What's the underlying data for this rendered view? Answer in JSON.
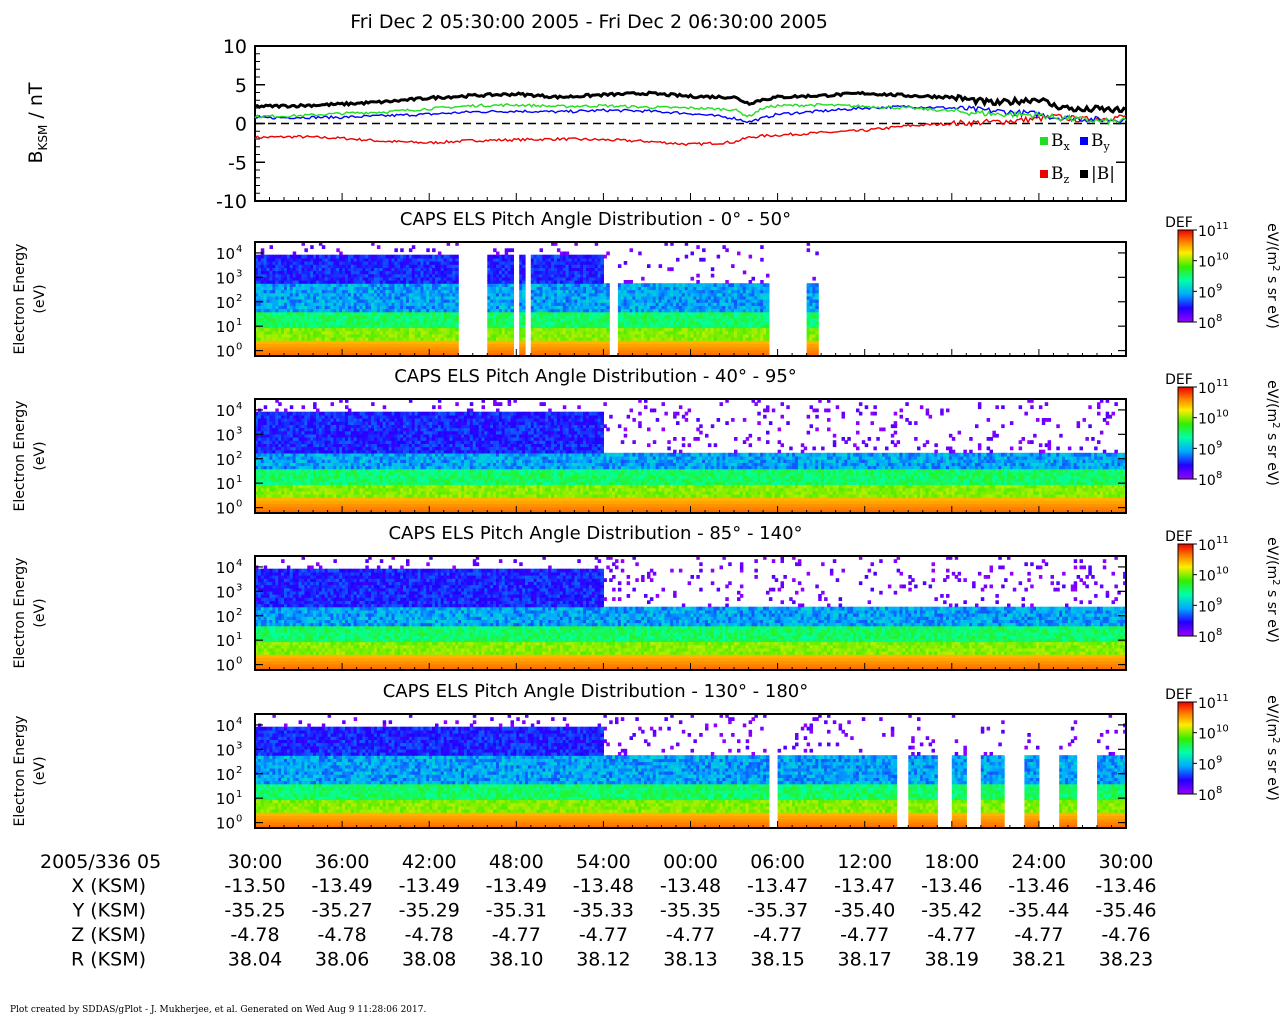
{
  "title": "Fri Dec 2 05:30:00 2005 - Fri Dec 2 06:30:00 2005",
  "footer": "Plot created by SDDAS/gPlot - J. Mukherjee, et al.  Generated on Wed Aug 9 11:28:06 2017.",
  "chart_data": [
    {
      "type": "line",
      "panel": "magnetic-field",
      "ylabel": "BKSM / nT",
      "ylim": [
        -10,
        10
      ],
      "yticks": [
        "10",
        "5",
        "0",
        "-5",
        "-10"
      ],
      "xlim_minutes": [
        0,
        60
      ],
      "zero_line": "dashed",
      "legend_placement": "bottom-right",
      "legend": [
        {
          "key": "Bx",
          "label": "B",
          "sub": "x",
          "color": "#22dd22"
        },
        {
          "key": "By",
          "label": "B",
          "sub": "y",
          "color": "#0000ff"
        },
        {
          "key": "Bz",
          "label": "B",
          "sub": "z",
          "color": "#ee0000"
        },
        {
          "key": "Bt",
          "label": "|B|",
          "sub": "",
          "color": "#000000"
        }
      ],
      "x": [
        0,
        3,
        6,
        9,
        12,
        15,
        18,
        21,
        24,
        27,
        30,
        33,
        34,
        35,
        36,
        39,
        42,
        45,
        48,
        51,
        54,
        55,
        57,
        58,
        60
      ],
      "series": [
        {
          "key": "Bx",
          "values": [
            0.9,
            1.0,
            1.3,
            1.5,
            1.9,
            2.3,
            2.4,
            2.2,
            2.3,
            2.1,
            2.0,
            1.8,
            0.9,
            2.0,
            2.3,
            2.4,
            2.2,
            2.0,
            1.6,
            1.2,
            1.1,
            0.8,
            0.5,
            0.3,
            0.3
          ]
        },
        {
          "key": "By",
          "values": [
            0.7,
            0.8,
            0.8,
            1.0,
            1.2,
            1.5,
            1.6,
            1.5,
            1.7,
            1.6,
            1.3,
            0.7,
            0.2,
            0.7,
            1.2,
            1.6,
            2.0,
            2.2,
            2.0,
            1.6,
            1.2,
            0.8,
            0.6,
            0.5,
            0.5
          ]
        },
        {
          "key": "Bz",
          "values": [
            -1.8,
            -1.7,
            -1.9,
            -2.3,
            -2.5,
            -2.2,
            -2.1,
            -2.0,
            -2.1,
            -2.3,
            -2.7,
            -2.4,
            -1.8,
            -1.6,
            -1.5,
            -1.2,
            -0.9,
            -0.3,
            0.0,
            0.2,
            0.6,
            0.9,
            0.5,
            0.6,
            0.9
          ]
        },
        {
          "key": "Bt",
          "values": [
            2.2,
            2.3,
            2.5,
            2.8,
            3.3,
            3.6,
            3.8,
            3.4,
            3.7,
            3.9,
            3.5,
            3.4,
            2.6,
            3.1,
            3.4,
            3.6,
            3.9,
            3.6,
            3.4,
            2.6,
            3.2,
            2.3,
            1.7,
            1.9,
            1.6
          ]
        }
      ]
    },
    {
      "type": "heatmap",
      "panel": "pad-1",
      "title": "CAPS ELS Pitch Angle Distribution - 0° - 50°",
      "ylabel": "Electron Energy",
      "ylabel2": "(eV)",
      "energy_range_eV": [
        0.6,
        28000
      ],
      "yticks": [
        "10",
        "10",
        "10",
        "10",
        "10"
      ],
      "ytick_exp": [
        "4",
        "3",
        "2",
        "1",
        "0"
      ],
      "colorbar": {
        "label": "DEF",
        "units": "eV/(m",
        "units_sup": "2",
        "units_rest": " s sr eV)",
        "range": [
          100000000.0,
          100000000000.0
        ],
        "ticks": [
          "10",
          "10",
          "10",
          "10"
        ],
        "tick_exp": [
          "11",
          "10",
          "9",
          "8"
        ]
      },
      "coverage_minutes": [
        [
          0,
          14.0
        ],
        [
          16.0,
          17.7
        ],
        [
          18.2,
          18.6
        ],
        [
          19.0,
          24.4
        ],
        [
          25.0,
          35.3
        ],
        [
          38.0,
          38.8
        ]
      ],
      "plasma_band_top_eV": 500
    },
    {
      "type": "heatmap",
      "panel": "pad-2",
      "title": "CAPS ELS Pitch Angle Distribution - 40° - 95°",
      "ylabel": "Electron Energy",
      "ylabel2": "(eV)",
      "energy_range_eV": [
        0.6,
        28000
      ],
      "yticks": [
        "10",
        "10",
        "10",
        "10",
        "10"
      ],
      "ytick_exp": [
        "4",
        "3",
        "2",
        "1",
        "0"
      ],
      "colorbar": {
        "label": "DEF",
        "units": "eV/(m",
        "units_sup": "2",
        "units_rest": " s sr eV)",
        "range": [
          100000000.0,
          100000000000.0
        ],
        "ticks": [
          "10",
          "10",
          "10",
          "10"
        ],
        "tick_exp": [
          "11",
          "10",
          "9",
          "8"
        ]
      },
      "coverage_minutes": [
        [
          0,
          60
        ]
      ],
      "plasma_band_top_eV": 200
    },
    {
      "type": "heatmap",
      "panel": "pad-3",
      "title": "CAPS ELS Pitch Angle Distribution - 85° - 140°",
      "ylabel": "Electron Energy",
      "ylabel2": "(eV)",
      "energy_range_eV": [
        0.6,
        28000
      ],
      "yticks": [
        "10",
        "10",
        "10",
        "10",
        "10"
      ],
      "ytick_exp": [
        "4",
        "3",
        "2",
        "1",
        "0"
      ],
      "colorbar": {
        "label": "DEF",
        "units": "eV/(m",
        "units_sup": "2",
        "units_rest": " s sr eV)",
        "range": [
          100000000.0,
          100000000000.0
        ],
        "ticks": [
          "10",
          "10",
          "10",
          "10"
        ],
        "tick_exp": [
          "11",
          "10",
          "9",
          "8"
        ]
      },
      "coverage_minutes": [
        [
          0,
          60
        ]
      ],
      "plasma_band_top_eV": 250
    },
    {
      "type": "heatmap",
      "panel": "pad-4",
      "title": "CAPS ELS Pitch Angle Distribution - 130° - 180°",
      "ylabel": "Electron Energy",
      "ylabel2": "(eV)",
      "energy_range_eV": [
        0.6,
        28000
      ],
      "yticks": [
        "10",
        "10",
        "10",
        "10",
        "10"
      ],
      "ytick_exp": [
        "4",
        "3",
        "2",
        "1",
        "0"
      ],
      "colorbar": {
        "label": "DEF",
        "units": "eV/(m",
        "units_sup": "2",
        "units_rest": " s sr eV)",
        "range": [
          100000000.0,
          100000000000.0
        ],
        "ticks": [
          "10",
          "10",
          "10",
          "10"
        ],
        "tick_exp": [
          "11",
          "10",
          "9",
          "8"
        ]
      },
      "coverage_minutes": [
        [
          0,
          35.3
        ],
        [
          36.0,
          44.2
        ],
        [
          45.0,
          47.0
        ],
        [
          48.0,
          49.0
        ],
        [
          50.0,
          51.5
        ],
        [
          53.0,
          54.0
        ],
        [
          55.5,
          56.5
        ],
        [
          58.0,
          60.0
        ]
      ],
      "plasma_band_top_eV": 600
    }
  ],
  "time_axis": {
    "row_label": "2005/336 05",
    "ticks": [
      "30:00",
      "36:00",
      "42:00",
      "48:00",
      "54:00",
      "00:00",
      "06:00",
      "12:00",
      "18:00",
      "24:00",
      "30:00"
    ],
    "ephemeris": [
      {
        "label": "X (KSM)",
        "values": [
          "-13.50",
          "-13.49",
          "-13.49",
          "-13.49",
          "-13.48",
          "-13.48",
          "-13.47",
          "-13.47",
          "-13.46",
          "-13.46",
          "-13.46"
        ]
      },
      {
        "label": "Y (KSM)",
        "values": [
          "-35.25",
          "-35.27",
          "-35.29",
          "-35.31",
          "-35.33",
          "-35.35",
          "-35.37",
          "-35.40",
          "-35.42",
          "-35.44",
          "-35.46"
        ]
      },
      {
        "label": "Z (KSM)",
        "values": [
          "-4.78",
          "-4.78",
          "-4.78",
          "-4.77",
          "-4.77",
          "-4.77",
          "-4.77",
          "-4.77",
          "-4.77",
          "-4.77",
          "-4.76"
        ]
      },
      {
        "label": "R (KSM)",
        "values": [
          "38.04",
          "38.06",
          "38.08",
          "38.10",
          "38.12",
          "38.13",
          "38.15",
          "38.17",
          "38.19",
          "38.21",
          "38.23"
        ]
      }
    ]
  }
}
